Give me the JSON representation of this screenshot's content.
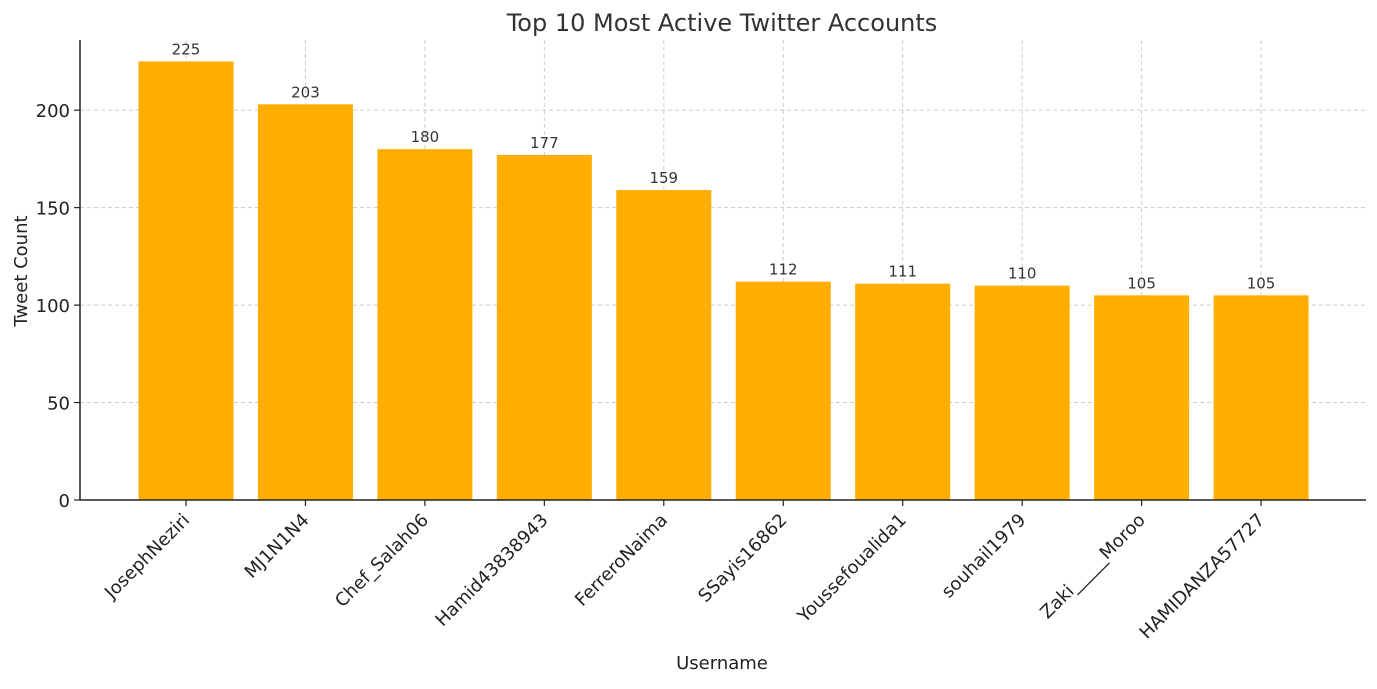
{
  "chart_data": {
    "type": "bar",
    "title": "Top 10 Most Active Twitter Accounts",
    "xlabel": "Username",
    "ylabel": "Tweet Count",
    "categories": [
      "JosephNeziri",
      "MJ1N1N4",
      "Chef_Salah06",
      "Hamid43838943",
      "FerreroNaima",
      "SSayis16862",
      "Youssefoualida1",
      "souhail1979",
      "Zaki_____Moroo",
      "HAMIDANZA57727"
    ],
    "values": [
      225,
      203,
      180,
      177,
      159,
      112,
      111,
      110,
      105,
      105
    ],
    "data_labels": [
      "225",
      "203",
      "180",
      "177",
      "159",
      "112",
      "111",
      "110",
      "105",
      "105"
    ],
    "yticks": [
      0,
      50,
      100,
      150,
      200
    ],
    "ytick_labels": [
      "0",
      "50",
      "100",
      "150",
      "200"
    ],
    "ylim": [
      0,
      236
    ],
    "grid": true,
    "bar_color": "#ffae00",
    "x_tick_rotation": "45 degrees"
  }
}
